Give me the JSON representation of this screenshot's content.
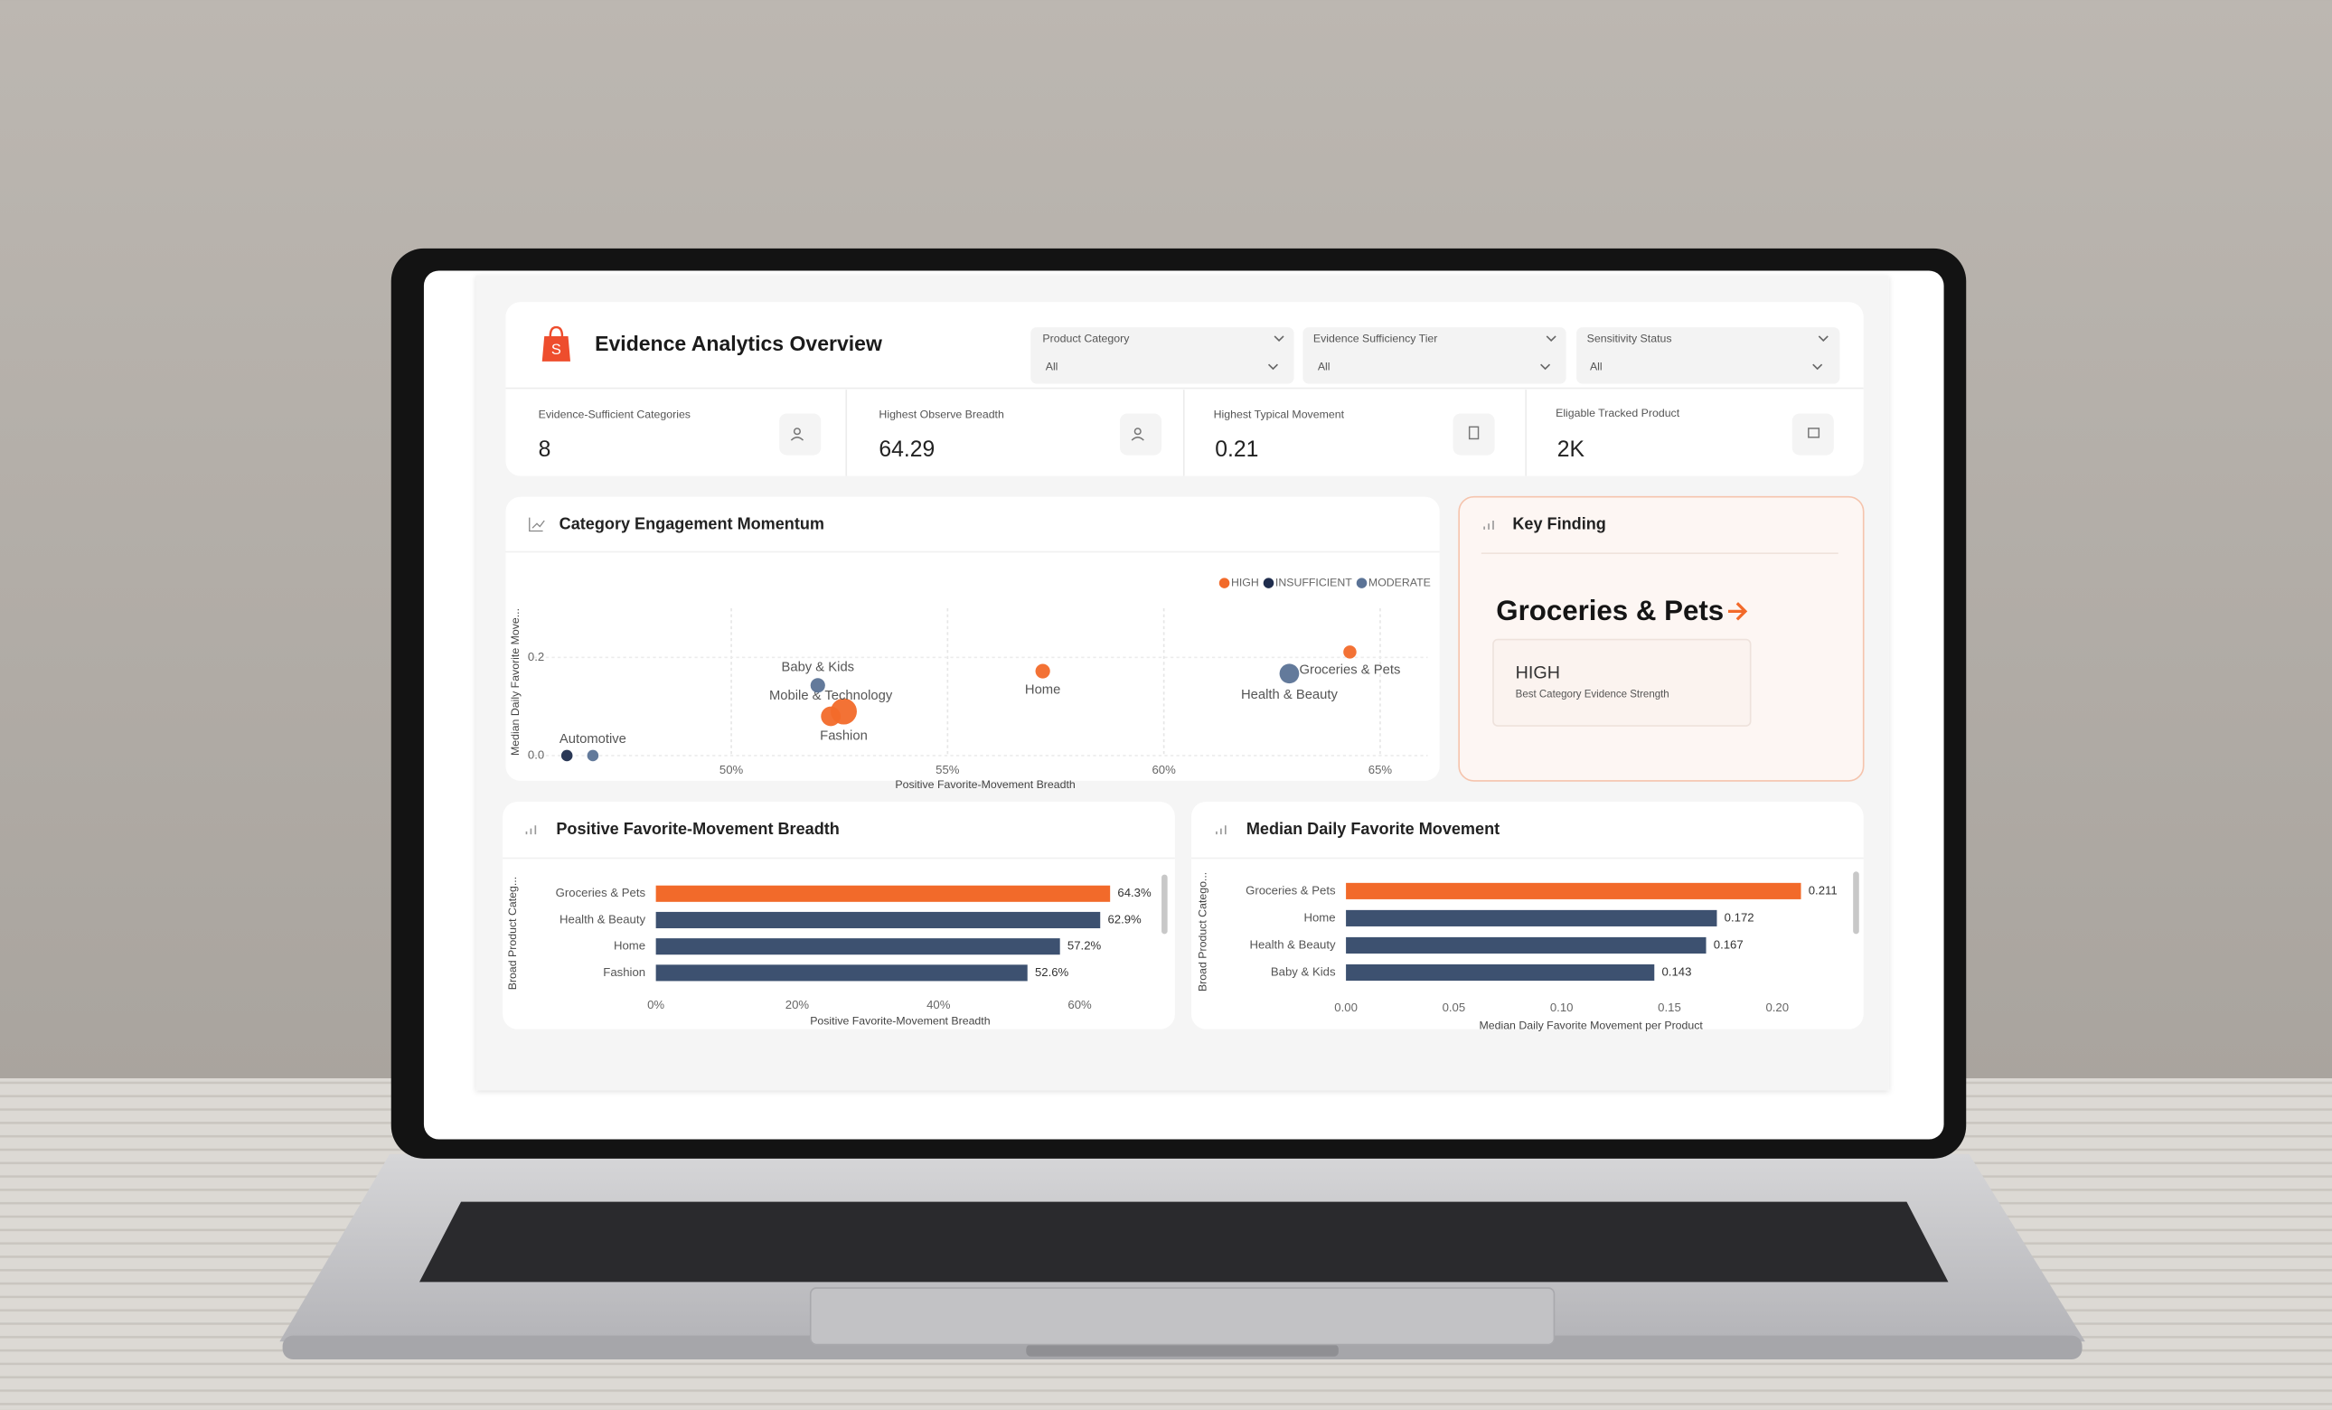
{
  "header": {
    "title": "Evidence Analytics Overview"
  },
  "filters": [
    {
      "label": "Product Category",
      "value": "All"
    },
    {
      "label": "Evidence Sufficiency Tier",
      "value": "All"
    },
    {
      "label": "Sensitivity Status",
      "value": "All"
    }
  ],
  "kpis": [
    {
      "label": "Evidence-Sufficient Categories",
      "value": "8"
    },
    {
      "label": "Highest Observe Breadth",
      "value": "64.29"
    },
    {
      "label": "Highest Typical Movement",
      "value": "0.21"
    },
    {
      "label": "Eligable Tracked Product",
      "value": "2K"
    }
  ],
  "key_finding": {
    "title": "Key Finding",
    "headline": "Groceries & Pets",
    "tier": "HIGH",
    "caption": "Best Category Evidence Strength"
  },
  "chart_data": [
    {
      "type": "scatter",
      "title": "Category Engagement Momentum",
      "x_label": "Positive Favorite-Movement Breadth",
      "y_label": "Median Daily Favorite Move...",
      "xlim": [
        45.3,
        66.1
      ],
      "ylim": [
        0,
        0.3
      ],
      "xticks": [
        {
          "value": 50,
          "label": "50%"
        },
        {
          "value": 55,
          "label": "55%"
        },
        {
          "value": 60,
          "label": "60%"
        },
        {
          "value": 65,
          "label": "65%"
        }
      ],
      "yticks": [
        {
          "value": 0,
          "label": "0.0"
        },
        {
          "value": 0.2,
          "label": "0.2"
        }
      ],
      "grid": true,
      "legend": "top-right",
      "series": [
        {
          "name": "HIGH",
          "color": "#f26a2a",
          "x": [
            64.3,
            57.2,
            52.6,
            52.3
          ],
          "values": [
            0.211,
            0.172,
            0.09,
            0.08
          ],
          "sizes": [
            16,
            20,
            64,
            36
          ],
          "labels": [
            "Groceries & Pets",
            "Home",
            "Fashion",
            "Mobile & Technology"
          ]
        },
        {
          "name": "INSUFFICIENT",
          "color": "#1f2d4d",
          "x": [
            46.2
          ],
          "values": [
            0
          ],
          "sizes": [
            12
          ],
          "labels": [
            null
          ]
        },
        {
          "name": "MODERATE",
          "color": "#5b7396",
          "x": [
            62.9,
            52.0,
            46.8
          ],
          "values": [
            0.167,
            0.143,
            0
          ],
          "sizes": [
            36,
            20,
            12
          ],
          "labels": [
            "Health & Beauty",
            "Baby & Kids",
            "Automotive"
          ]
        }
      ]
    },
    {
      "type": "bar",
      "orientation": "horizontal",
      "title": "Positive Favorite-Movement Breadth",
      "x_label": "Positive Favorite-Movement Breadth",
      "y_label": "Broad Product Categ...",
      "categories": [
        "Groceries & Pets",
        "Health & Beauty",
        "Home",
        "Fashion"
      ],
      "values": [
        64.3,
        62.9,
        57.2,
        52.6
      ],
      "value_labels": [
        "64.3%",
        "62.9%",
        "57.2%",
        "52.6%"
      ],
      "colors": [
        "#f26a2a",
        "#3d5170",
        "#3d5170",
        "#3d5170"
      ],
      "xlim": [
        0,
        70
      ],
      "xticks": [
        {
          "value": 0,
          "label": "0%"
        },
        {
          "value": 20,
          "label": "20%"
        },
        {
          "value": 40,
          "label": "40%"
        },
        {
          "value": 60,
          "label": "60%"
        }
      ],
      "grid": false
    },
    {
      "type": "bar",
      "orientation": "horizontal",
      "title": "Median Daily Favorite Movement",
      "x_label": "Median Daily Favorite Movement per Product",
      "y_label": "Broad Product Catego...",
      "categories": [
        "Groceries & Pets",
        "Home",
        "Health & Beauty",
        "Baby & Kids"
      ],
      "values": [
        0.211,
        0.172,
        0.167,
        0.143
      ],
      "colors": [
        "#f26a2a",
        "#3d5170",
        "#3d5170",
        "#3d5170"
      ],
      "xlim": [
        0,
        0.23
      ],
      "xticks": [
        {
          "value": 0,
          "label": "0.00"
        },
        0.05,
        {
          "value": 0.1,
          "label": "0.10"
        },
        0.15,
        {
          "value": 0.2,
          "label": "0.20"
        }
      ],
      "grid": false
    }
  ]
}
